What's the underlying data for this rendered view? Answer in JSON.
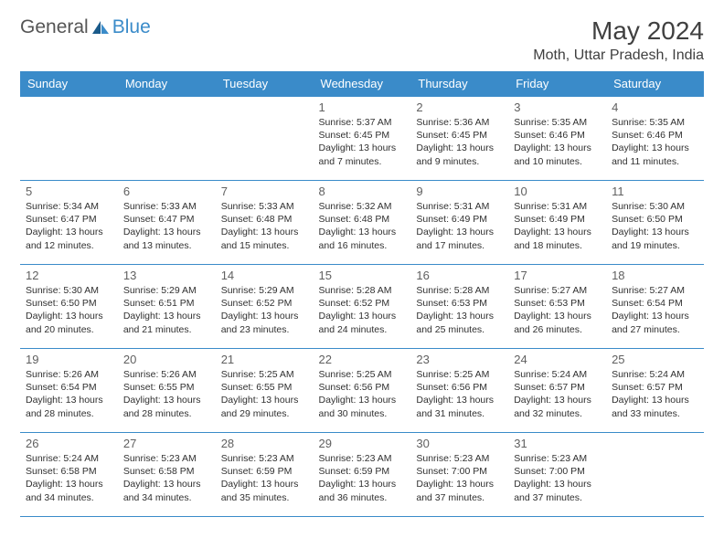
{
  "logo": {
    "textGeneral": "General",
    "textBlue": "Blue"
  },
  "title": {
    "monthYear": "May 2024",
    "location": "Moth, Uttar Pradesh, India"
  },
  "colors": {
    "headerBg": "#3a8bc9",
    "headerText": "#ffffff",
    "border": "#3a8bc9",
    "dayNum": "#606060",
    "dayInfo": "#303030",
    "logoGeneral": "#555555",
    "logoBlue": "#3a8bc9"
  },
  "dayHeaders": [
    "Sunday",
    "Monday",
    "Tuesday",
    "Wednesday",
    "Thursday",
    "Friday",
    "Saturday"
  ],
  "weeks": [
    [
      null,
      null,
      null,
      {
        "num": "1",
        "sunrise": "5:37 AM",
        "sunset": "6:45 PM",
        "daylight": "13 hours and 7 minutes."
      },
      {
        "num": "2",
        "sunrise": "5:36 AM",
        "sunset": "6:45 PM",
        "daylight": "13 hours and 9 minutes."
      },
      {
        "num": "3",
        "sunrise": "5:35 AM",
        "sunset": "6:46 PM",
        "daylight": "13 hours and 10 minutes."
      },
      {
        "num": "4",
        "sunrise": "5:35 AM",
        "sunset": "6:46 PM",
        "daylight": "13 hours and 11 minutes."
      }
    ],
    [
      {
        "num": "5",
        "sunrise": "5:34 AM",
        "sunset": "6:47 PM",
        "daylight": "13 hours and 12 minutes."
      },
      {
        "num": "6",
        "sunrise": "5:33 AM",
        "sunset": "6:47 PM",
        "daylight": "13 hours and 13 minutes."
      },
      {
        "num": "7",
        "sunrise": "5:33 AM",
        "sunset": "6:48 PM",
        "daylight": "13 hours and 15 minutes."
      },
      {
        "num": "8",
        "sunrise": "5:32 AM",
        "sunset": "6:48 PM",
        "daylight": "13 hours and 16 minutes."
      },
      {
        "num": "9",
        "sunrise": "5:31 AM",
        "sunset": "6:49 PM",
        "daylight": "13 hours and 17 minutes."
      },
      {
        "num": "10",
        "sunrise": "5:31 AM",
        "sunset": "6:49 PM",
        "daylight": "13 hours and 18 minutes."
      },
      {
        "num": "11",
        "sunrise": "5:30 AM",
        "sunset": "6:50 PM",
        "daylight": "13 hours and 19 minutes."
      }
    ],
    [
      {
        "num": "12",
        "sunrise": "5:30 AM",
        "sunset": "6:50 PM",
        "daylight": "13 hours and 20 minutes."
      },
      {
        "num": "13",
        "sunrise": "5:29 AM",
        "sunset": "6:51 PM",
        "daylight": "13 hours and 21 minutes."
      },
      {
        "num": "14",
        "sunrise": "5:29 AM",
        "sunset": "6:52 PM",
        "daylight": "13 hours and 23 minutes."
      },
      {
        "num": "15",
        "sunrise": "5:28 AM",
        "sunset": "6:52 PM",
        "daylight": "13 hours and 24 minutes."
      },
      {
        "num": "16",
        "sunrise": "5:28 AM",
        "sunset": "6:53 PM",
        "daylight": "13 hours and 25 minutes."
      },
      {
        "num": "17",
        "sunrise": "5:27 AM",
        "sunset": "6:53 PM",
        "daylight": "13 hours and 26 minutes."
      },
      {
        "num": "18",
        "sunrise": "5:27 AM",
        "sunset": "6:54 PM",
        "daylight": "13 hours and 27 minutes."
      }
    ],
    [
      {
        "num": "19",
        "sunrise": "5:26 AM",
        "sunset": "6:54 PM",
        "daylight": "13 hours and 28 minutes."
      },
      {
        "num": "20",
        "sunrise": "5:26 AM",
        "sunset": "6:55 PM",
        "daylight": "13 hours and 28 minutes."
      },
      {
        "num": "21",
        "sunrise": "5:25 AM",
        "sunset": "6:55 PM",
        "daylight": "13 hours and 29 minutes."
      },
      {
        "num": "22",
        "sunrise": "5:25 AM",
        "sunset": "6:56 PM",
        "daylight": "13 hours and 30 minutes."
      },
      {
        "num": "23",
        "sunrise": "5:25 AM",
        "sunset": "6:56 PM",
        "daylight": "13 hours and 31 minutes."
      },
      {
        "num": "24",
        "sunrise": "5:24 AM",
        "sunset": "6:57 PM",
        "daylight": "13 hours and 32 minutes."
      },
      {
        "num": "25",
        "sunrise": "5:24 AM",
        "sunset": "6:57 PM",
        "daylight": "13 hours and 33 minutes."
      }
    ],
    [
      {
        "num": "26",
        "sunrise": "5:24 AM",
        "sunset": "6:58 PM",
        "daylight": "13 hours and 34 minutes."
      },
      {
        "num": "27",
        "sunrise": "5:23 AM",
        "sunset": "6:58 PM",
        "daylight": "13 hours and 34 minutes."
      },
      {
        "num": "28",
        "sunrise": "5:23 AM",
        "sunset": "6:59 PM",
        "daylight": "13 hours and 35 minutes."
      },
      {
        "num": "29",
        "sunrise": "5:23 AM",
        "sunset": "6:59 PM",
        "daylight": "13 hours and 36 minutes."
      },
      {
        "num": "30",
        "sunrise": "5:23 AM",
        "sunset": "7:00 PM",
        "daylight": "13 hours and 37 minutes."
      },
      {
        "num": "31",
        "sunrise": "5:23 AM",
        "sunset": "7:00 PM",
        "daylight": "13 hours and 37 minutes."
      },
      null
    ]
  ],
  "labels": {
    "sunrise": "Sunrise: ",
    "sunset": "Sunset: ",
    "daylight": "Daylight: "
  }
}
